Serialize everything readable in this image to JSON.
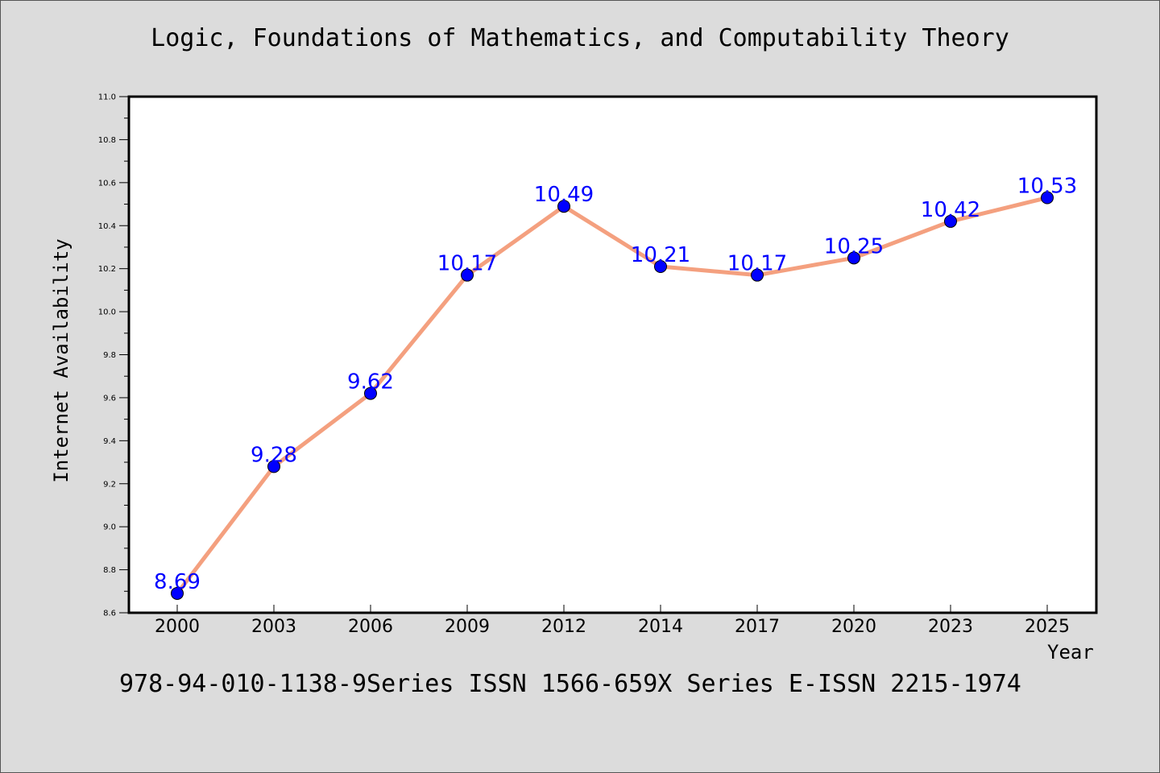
{
  "chart_data": {
    "type": "line",
    "title": "Logic, Foundations of Mathematics, and Computability Theory",
    "xlabel": "Year",
    "ylabel": "Internet Availability",
    "categories": [
      "2000",
      "2003",
      "2006",
      "2009",
      "2012",
      "2014",
      "2017",
      "2020",
      "2023",
      "2025"
    ],
    "series": [
      {
        "values": [
          8.69,
          9.28,
          9.62,
          10.17,
          10.49,
          10.21,
          10.17,
          10.25,
          10.42,
          10.53
        ],
        "data_labels": [
          "8.69",
          "9.28",
          "9.62",
          "10.17",
          "10.49",
          "10.21",
          "10.17",
          "10.25",
          "10.42",
          "10.53"
        ],
        "line_color": "#f4a07f",
        "marker_color": "#0000ff"
      }
    ],
    "ylim": [
      8.6,
      11.0
    ],
    "yticks": [
      "8.6",
      "8.8",
      "9.0",
      "9.2",
      "9.4",
      "9.6",
      "9.8",
      "10.0",
      "10.2",
      "10.4",
      "10.6",
      "10.8",
      "11.0"
    ],
    "grid": false,
    "legend": "none"
  },
  "footer": "978-94-010-1138-9Series ISSN 1566-659X Series E-ISSN 2215-1974",
  "colors": {
    "background": "#dcdcdc",
    "plot_area": "#ffffff",
    "data_label": "#0000ff"
  }
}
